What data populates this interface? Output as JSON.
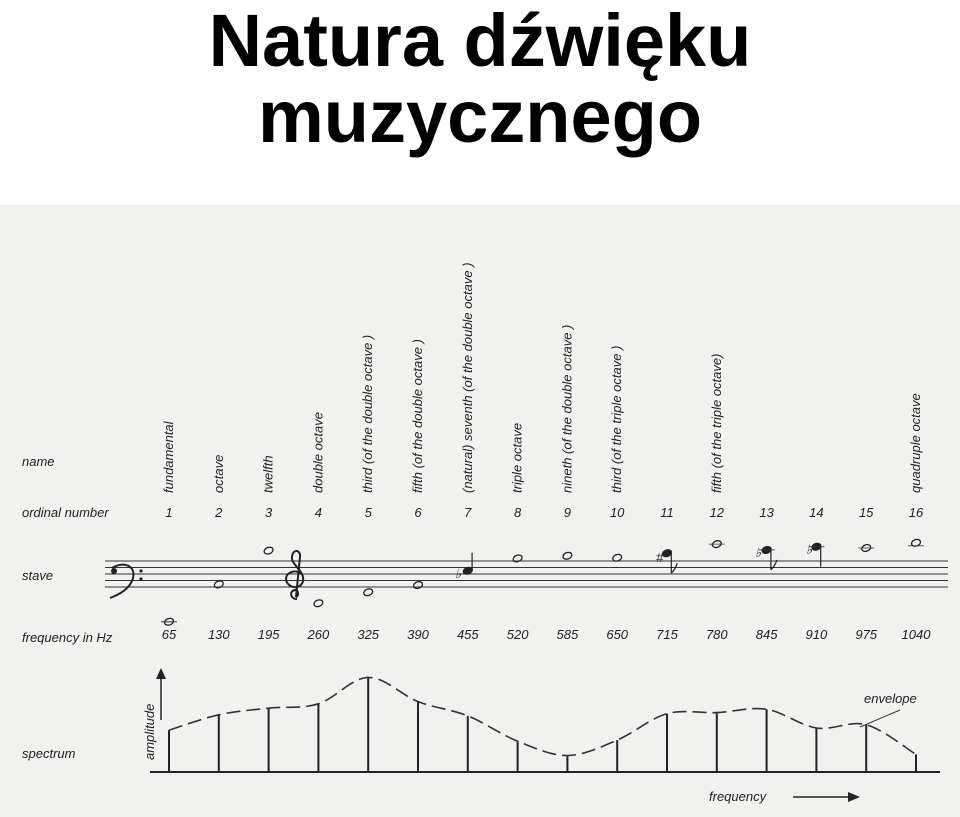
{
  "title": {
    "line1": "Natura dźwięku",
    "line2": "muzycznego"
  },
  "row_labels": {
    "name": "name",
    "ordinal": "ordinal number",
    "stave": "stave",
    "frequency": "frequency  in Hz",
    "spectrum": "spectrum"
  },
  "harmonics": [
    {
      "name": "fundamental",
      "ordinal": "1",
      "frequency": "65",
      "amplitude": 0.38
    },
    {
      "name": "octave",
      "ordinal": "2",
      "frequency": "130",
      "amplitude": 0.52
    },
    {
      "name": "twelfth",
      "ordinal": "3",
      "frequency": "195",
      "amplitude": 0.58
    },
    {
      "name": "double  octave",
      "ordinal": "4",
      "frequency": "260",
      "amplitude": 0.62
    },
    {
      "name": "third  (of  the  double  octave )",
      "ordinal": "5",
      "frequency": "325",
      "amplitude": 0.86
    },
    {
      "name": "fifth  (of  the  double  octave )",
      "ordinal": "6",
      "frequency": "390",
      "amplitude": 0.64
    },
    {
      "name": "(natural)  seventh (of the double octave )",
      "ordinal": "7",
      "frequency": "455",
      "amplitude": 0.51
    },
    {
      "name": "triple  octave",
      "ordinal": "8",
      "frequency": "520",
      "amplitude": 0.28
    },
    {
      "name": "nineth (of the double octave )",
      "ordinal": "9",
      "frequency": "585",
      "amplitude": 0.15
    },
    {
      "name": "third  (of  the  triple  octave )",
      "ordinal": "10",
      "frequency": "650",
      "amplitude": 0.29
    },
    {
      "name": "",
      "ordinal": "11",
      "frequency": "715",
      "amplitude": 0.53
    },
    {
      "name": "fifth  (of  the  triple  octave)",
      "ordinal": "12",
      "frequency": "780",
      "amplitude": 0.54
    },
    {
      "name": "",
      "ordinal": "13",
      "frequency": "845",
      "amplitude": 0.57
    },
    {
      "name": "",
      "ordinal": "14",
      "frequency": "910",
      "amplitude": 0.4
    },
    {
      "name": "",
      "ordinal": "15",
      "frequency": "975",
      "amplitude": 0.43
    },
    {
      "name": "quadruple  octave",
      "ordinal": "16",
      "frequency": "1040",
      "amplitude": 0.16
    }
  ],
  "stave_accidentals": {
    "flat_7": "♭",
    "sharp_11": "#",
    "flat_13": "♭",
    "flat_14": "♭"
  },
  "clefs": {
    "bass": "bass-clef",
    "treble": "treble-clef"
  },
  "spectrum": {
    "y_axis_label": "amplitude",
    "x_axis_label": "frequency",
    "envelope_label": "envelope"
  }
}
